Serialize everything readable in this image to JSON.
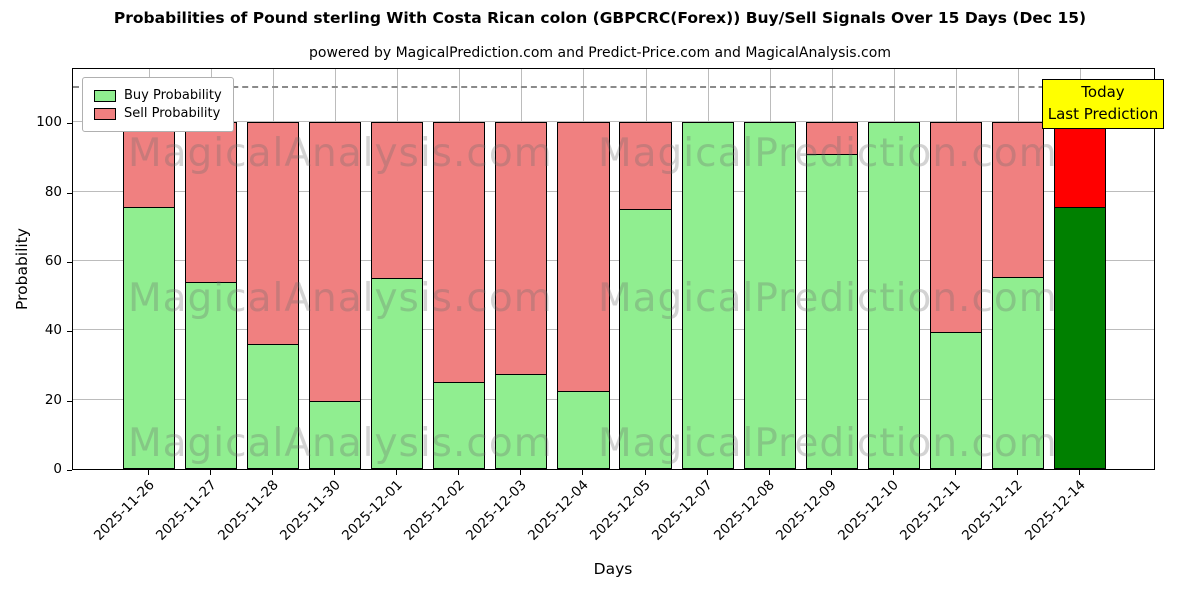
{
  "title": "Probabilities of Pound sterling With Costa Rican colon (GBPCRC(Forex)) Buy/Sell Signals Over 15 Days (Dec 15)",
  "subtitle": "powered by MagicalPrediction.com and Predict-Price.com and MagicalAnalysis.com",
  "axes": {
    "x_label": "Days",
    "y_label": "Probability",
    "y_ticks": [
      0,
      20,
      40,
      60,
      80,
      100
    ]
  },
  "legend": [
    {
      "label": "Buy Probability",
      "color": "#90EE90"
    },
    {
      "label": "Sell Probability",
      "color": "#F08080"
    }
  ],
  "annotation": {
    "line1": "Today",
    "line2": "Last Prediction",
    "bg": "#FFFF00"
  },
  "watermarks": [
    "MagicalAnalysis.com",
    "MagicalPrediction.com"
  ],
  "chart_data": {
    "type": "bar",
    "stacked": true,
    "categories": [
      "2025-11-26",
      "2025-11-27",
      "2025-11-28",
      "2025-11-30",
      "2025-12-01",
      "2025-12-02",
      "2025-12-03",
      "2025-12-04",
      "2025-12-05",
      "2025-12-07",
      "2025-12-08",
      "2025-12-09",
      "2025-12-10",
      "2025-12-11",
      "2025-12-12",
      "2025-12-14"
    ],
    "series": [
      {
        "name": "Buy Probability",
        "color": "#90EE90",
        "today_color": "#008000",
        "values": [
          75.5,
          54,
          36,
          19.5,
          55,
          25,
          27.5,
          22.5,
          75,
          100,
          100,
          91,
          100,
          39.5,
          55.5,
          75.5
        ]
      },
      {
        "name": "Sell Probability",
        "color": "#F08080",
        "today_color": "#FF0000",
        "values": [
          24.5,
          46,
          64,
          80.5,
          45,
          75,
          72.5,
          77.5,
          25,
          0,
          0,
          9,
          0,
          60.5,
          44.5,
          24.5
        ]
      }
    ],
    "ylim": [
      0,
      116
    ],
    "dashed_line_y": 110,
    "today_index": 15,
    "grid": true,
    "legend_position": "upper-left"
  }
}
